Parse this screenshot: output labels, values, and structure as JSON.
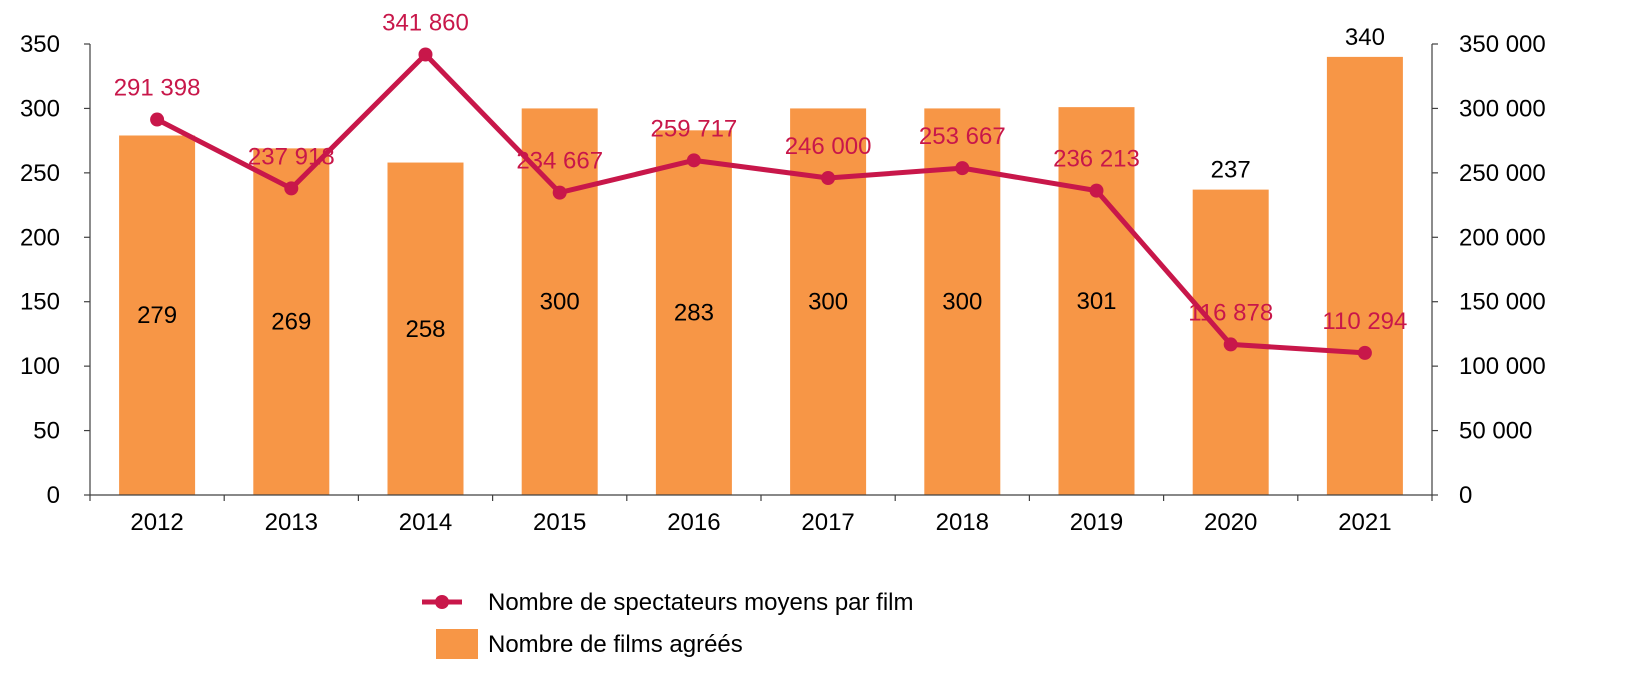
{
  "chart_data": {
    "type": "bar",
    "categories": [
      "2012",
      "2013",
      "2014",
      "2015",
      "2016",
      "2017",
      "2018",
      "2019",
      "2020",
      "2021"
    ],
    "series": [
      {
        "name": "Nombre de films agréés",
        "type": "bar",
        "axis": "left",
        "color": "#f79646",
        "values": [
          279,
          269,
          258,
          300,
          283,
          300,
          300,
          301,
          237,
          340
        ],
        "labels": [
          "279",
          "269",
          "258",
          "300",
          "283",
          "300",
          "300",
          "301",
          "237",
          "340"
        ]
      },
      {
        "name": "Nombre de spectateurs moyens par film",
        "type": "line",
        "axis": "right",
        "color": "#c8174a",
        "values": [
          291398,
          237918,
          341860,
          234667,
          259717,
          246000,
          253667,
          236213,
          116878,
          110294
        ],
        "labels": [
          "291 398",
          "237 918",
          "341 860",
          "234 667",
          "259 717",
          "246 000",
          "253 667",
          "236 213",
          "116 878",
          "110 294"
        ]
      }
    ],
    "y_left": {
      "ylim": [
        0,
        350
      ],
      "ticks": [
        "0",
        "50",
        "100",
        "150",
        "200",
        "250",
        "300",
        "350"
      ]
    },
    "y_right": {
      "ylim": [
        0,
        350000
      ],
      "ticks": [
        "0",
        "50 000",
        "100 000",
        "150 000",
        "200 000",
        "250 000",
        "300 000",
        "350 000"
      ]
    },
    "grid": false,
    "legend": {
      "position": "bottom",
      "items": [
        "Nombre de spectateurs moyens par film",
        "Nombre de films agréés"
      ]
    }
  }
}
